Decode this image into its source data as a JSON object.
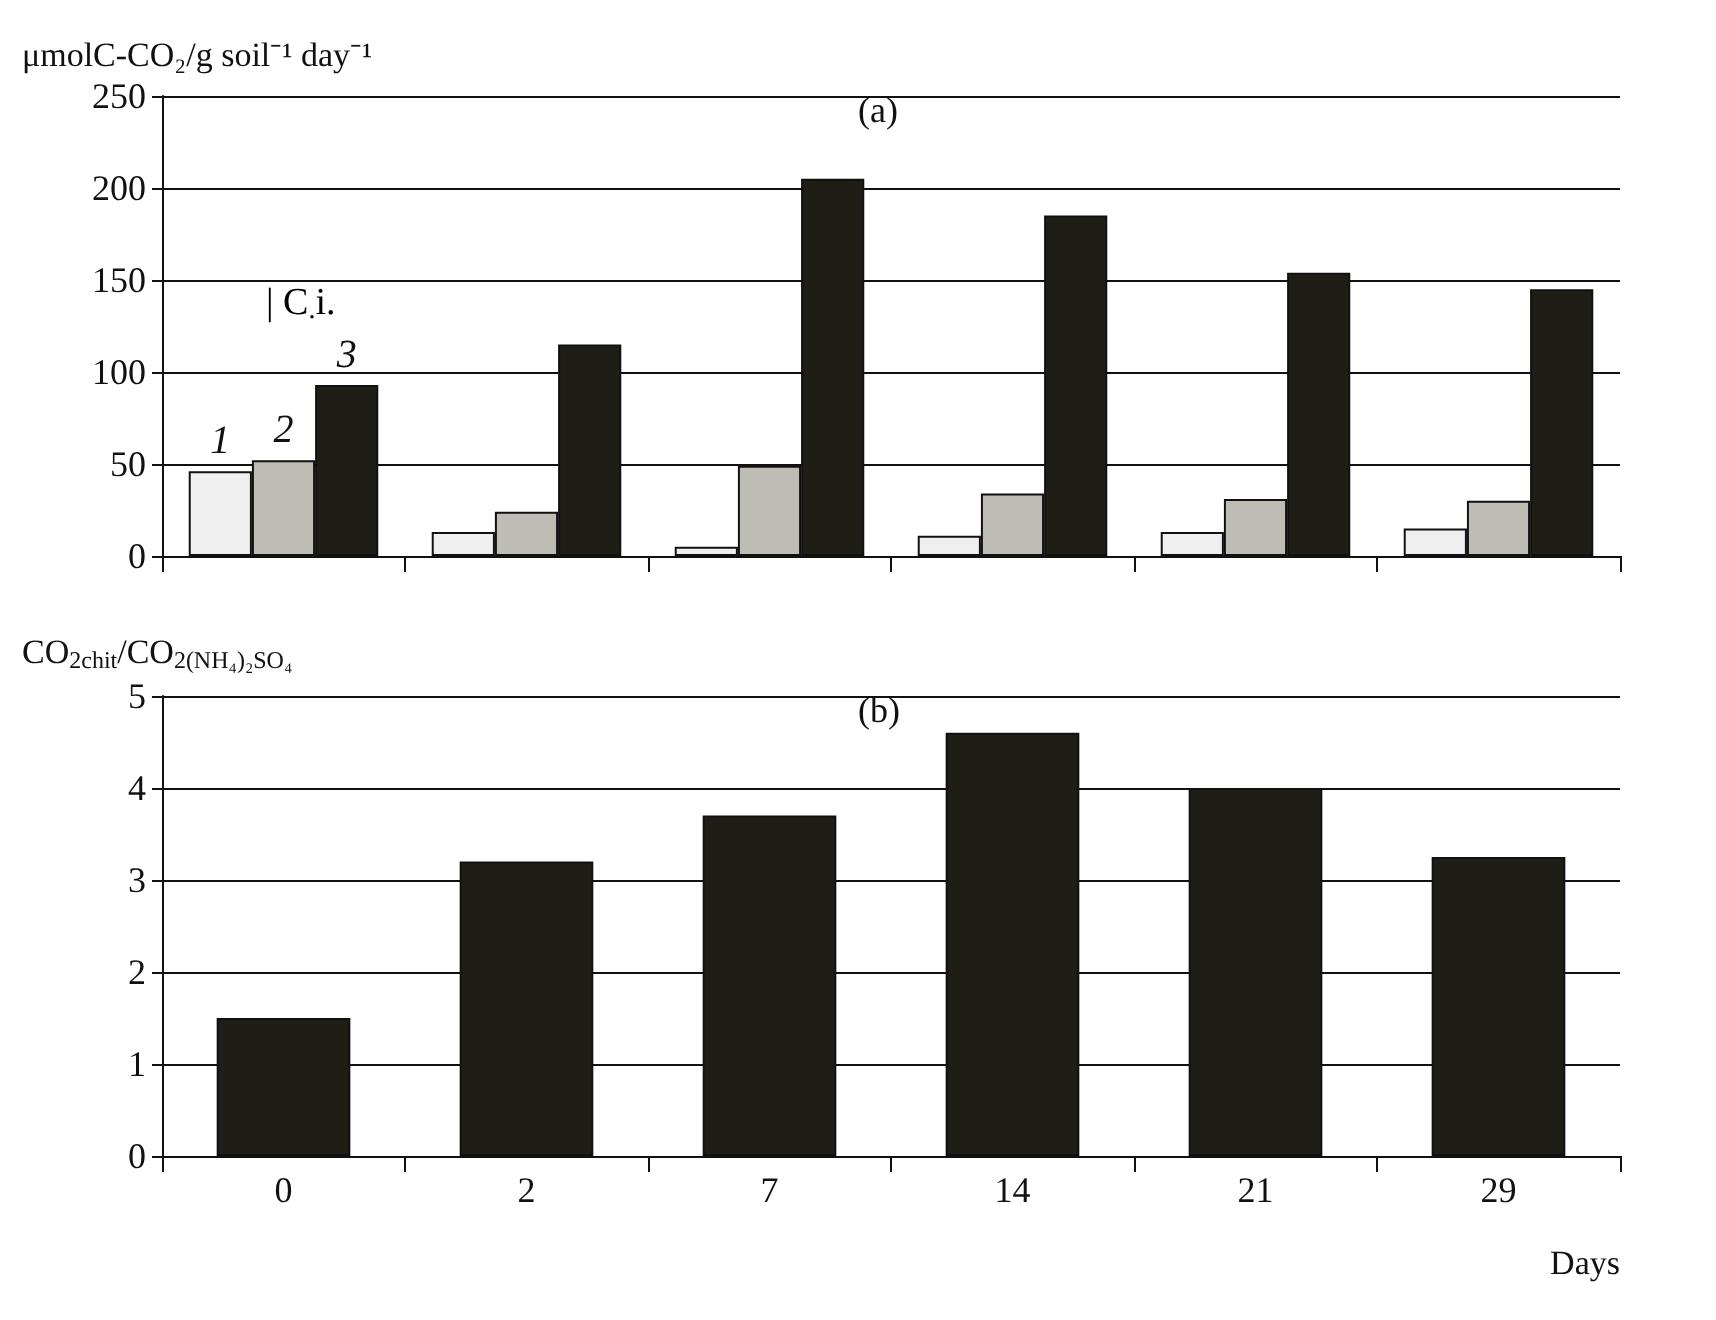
{
  "chart_data": [
    {
      "type": "bar",
      "ylabel": "μmolC-CO₂/g soil⁻¹ day⁻¹",
      "categories": [
        "0",
        "2",
        "7",
        "14",
        "21",
        "29"
      ],
      "tick_labels": "y",
      "ylim": [
        0,
        250
      ],
      "yticks": [
        0,
        50,
        100,
        150,
        200,
        250
      ],
      "grid": "y",
      "annotations": [
        "(a)",
        "| C$_{.}$i."
      ],
      "series": [
        {
          "name": "1",
          "color": "#efefef",
          "values": [
            46,
            13,
            5,
            11,
            13,
            15
          ]
        },
        {
          "name": "2",
          "color": "#bdbdb5",
          "values": [
            52,
            24,
            49,
            34,
            31,
            30
          ]
        },
        {
          "name": "3",
          "color": "#1e1e17",
          "values": [
            93,
            115,
            205,
            185,
            154,
            145
          ]
        }
      ]
    },
    {
      "type": "bar",
      "ylabel": "CO$_{2chit}$/CO$_{2(NH₄)₂SO₄}$",
      "xlabel": "Days",
      "categories": [
        "0",
        "2",
        "7",
        "14",
        "21",
        "29"
      ],
      "ylim": [
        0,
        5
      ],
      "yticks": [
        0,
        1,
        2,
        3,
        4,
        5
      ],
      "grid": "y",
      "annotations": [
        "(b)"
      ],
      "series": [
        {
          "color": "#1e1e17",
          "values": [
            1.5,
            3.2,
            3.7,
            4.6,
            4.0,
            3.25
          ]
        }
      ]
    }
  ]
}
